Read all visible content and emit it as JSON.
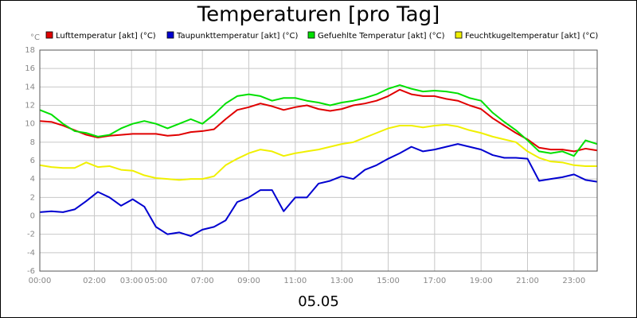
{
  "chart_data": {
    "type": "line",
    "title": "Temperaturen [pro Tag]",
    "x_label": "05.05",
    "y_unit": "°C",
    "x": [
      0,
      0.5,
      1,
      1.5,
      2,
      2.5,
      3,
      3.5,
      4,
      4.5,
      5,
      5.5,
      6,
      6.5,
      7,
      7.5,
      8,
      8.5,
      9,
      9.5,
      10,
      10.5,
      11,
      11.5,
      12,
      12.5,
      13,
      13.5,
      14,
      14.5,
      15,
      15.5,
      16,
      16.5,
      17,
      17.5,
      18,
      18.5,
      19,
      19.5,
      20,
      20.5,
      21,
      21.5,
      22,
      22.5,
      23,
      23.5,
      24
    ],
    "xlim": [
      0,
      24
    ],
    "xticks": [
      {
        "value": 0,
        "label": "00:00"
      },
      {
        "value": 2.35,
        "label": "02:00"
      },
      {
        "value": 3.95,
        "label": "03:00"
      },
      {
        "value": 5,
        "label": "05:00"
      },
      {
        "value": 7,
        "label": "07:00"
      },
      {
        "value": 9,
        "label": "09:00"
      },
      {
        "value": 11,
        "label": "11:00"
      },
      {
        "value": 13,
        "label": "13:00"
      },
      {
        "value": 15,
        "label": "15:00"
      },
      {
        "value": 17,
        "label": "17:00"
      },
      {
        "value": 19,
        "label": "19:00"
      },
      {
        "value": 21,
        "label": "21:00"
      },
      {
        "value": 23,
        "label": "23:00"
      }
    ],
    "ylim": [
      -6,
      18
    ],
    "yticks": [
      -6,
      -4,
      -2,
      0,
      2,
      4,
      6,
      8,
      10,
      12,
      14,
      16,
      18
    ],
    "grid": true,
    "series": [
      {
        "name": "Lufttemperatur [akt] (°C)",
        "color": "#e00000",
        "values": [
          10.3,
          10.2,
          9.8,
          9.3,
          8.8,
          8.5,
          8.7,
          8.8,
          8.9,
          8.9,
          8.9,
          8.7,
          8.8,
          9.1,
          9.2,
          9.4,
          10.5,
          11.5,
          11.8,
          12.2,
          11.9,
          11.5,
          11.8,
          12.0,
          11.6,
          11.4,
          11.6,
          12.0,
          12.2,
          12.5,
          13.0,
          13.7,
          13.2,
          13.0,
          13.0,
          12.7,
          12.5,
          12.0,
          11.6,
          10.6,
          9.8,
          9.0,
          8.3,
          7.4,
          7.2,
          7.2,
          7.0,
          7.3,
          7.1
        ]
      },
      {
        "name": "Taupunkttemperatur [akt] (°C)",
        "color": "#0000d0",
        "values": [
          0.4,
          0.5,
          0.4,
          0.7,
          1.6,
          2.6,
          2.0,
          1.1,
          1.8,
          1.0,
          -1.2,
          -2.0,
          -1.8,
          -2.2,
          -1.5,
          -1.2,
          -0.5,
          1.5,
          2.0,
          2.8,
          2.8,
          0.5,
          2.0,
          2.0,
          3.5,
          3.8,
          4.3,
          4.0,
          5.0,
          5.5,
          6.2,
          6.8,
          7.5,
          7.0,
          7.2,
          7.5,
          7.8,
          7.5,
          7.2,
          6.6,
          6.3,
          6.3,
          6.2,
          3.8,
          4.0,
          4.2,
          4.5,
          3.9,
          3.7
        ]
      },
      {
        "name": "Gefuehlte Temperatur [akt] (°C)",
        "color": "#00e000",
        "values": [
          11.5,
          11.0,
          10.0,
          9.2,
          9.0,
          8.6,
          8.8,
          9.5,
          10.0,
          10.3,
          10.0,
          9.5,
          10.0,
          10.5,
          10.0,
          11.0,
          12.2,
          13.0,
          13.2,
          13.0,
          12.5,
          12.8,
          12.8,
          12.5,
          12.3,
          12.0,
          12.3,
          12.5,
          12.8,
          13.2,
          13.8,
          14.2,
          13.8,
          13.5,
          13.6,
          13.5,
          13.3,
          12.8,
          12.5,
          11.2,
          10.2,
          9.3,
          8.2,
          7.0,
          6.8,
          7.0,
          6.5,
          8.2,
          7.8
        ]
      },
      {
        "name": "Feuchtkugeltemperatur [akt] (°C)",
        "color": "#f0f000",
        "values": [
          5.5,
          5.3,
          5.2,
          5.2,
          5.8,
          5.3,
          5.4,
          5.0,
          4.9,
          4.4,
          4.1,
          4.0,
          3.9,
          4.0,
          4.0,
          4.3,
          5.5,
          6.2,
          6.8,
          7.2,
          7.0,
          6.5,
          6.8,
          7.0,
          7.2,
          7.5,
          7.8,
          8.0,
          8.5,
          9.0,
          9.5,
          9.8,
          9.8,
          9.6,
          9.8,
          9.9,
          9.7,
          9.3,
          9.0,
          8.6,
          8.3,
          8.0,
          7.0,
          6.3,
          5.9,
          5.8,
          5.5,
          5.4,
          5.4
        ]
      }
    ]
  }
}
